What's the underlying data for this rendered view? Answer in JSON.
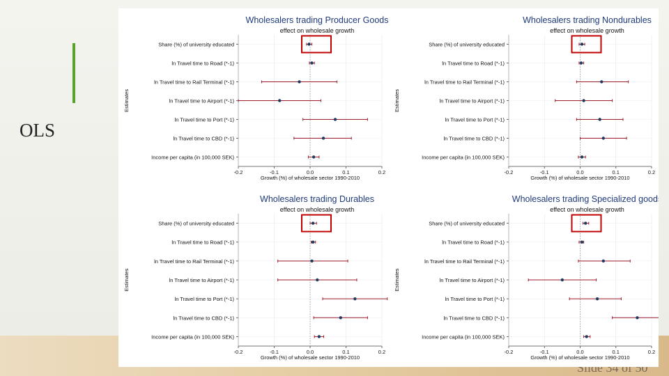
{
  "slide": {
    "label": "OLS",
    "slide_number": "Slide 34 of 50",
    "accent_color": "#5aa02c"
  },
  "colors": {
    "ci_line": "#9b1b2a",
    "point": "#1f3a5f",
    "highlight_box": "#c00000",
    "zero_line": "#999999"
  },
  "chart_data": [
    {
      "type": "scatter",
      "title": "Wholesalers trading Producer Goods",
      "subtitle": "effect on wholesale growth",
      "xlabel": "Growth (%) of wholesale sector 1990-2010",
      "ylabel": "Estimates",
      "xlim": [
        -0.2,
        0.2
      ],
      "xticks": [
        "-0.2",
        "-0.1",
        "0.0",
        "0.1",
        "0.2"
      ],
      "categories": [
        "Share (%) of university educated",
        "ln Travel time to Road (*-1)",
        "ln Travel time to Rail Terminal (*-1)",
        "ln Travel time to Airport (*-1)",
        "ln Travel time to Port (*-1)",
        "ln Travel time to CBD (*-1)",
        "Income per capita (in 100,000 SEK)"
      ],
      "estimates": [
        -0.003,
        0.005,
        -0.03,
        -0.085,
        0.07,
        0.037,
        0.01
      ],
      "ci_low": [
        -0.01,
        -0.002,
        -0.135,
        -0.2,
        -0.02,
        -0.045,
        -0.005
      ],
      "ci_high": [
        0.005,
        0.012,
        0.075,
        0.03,
        0.16,
        0.115,
        0.025
      ],
      "highlight": "Share (%) of university educated"
    },
    {
      "type": "scatter",
      "title": "Wholesalers trading Nondurables",
      "subtitle": "effect on wholesale growth",
      "xlabel": "Growth (%) of wholesale sector 1990-2010",
      "ylabel": "Estimates",
      "xlim": [
        -0.2,
        0.2
      ],
      "xticks": [
        "-0.2",
        "-0.1",
        "0.0",
        "0.1",
        "0.2"
      ],
      "categories": [
        "Share (%) of university educated",
        "ln Travel time to Road (*-1)",
        "ln Travel time to Rail Terminal (*-1)",
        "ln Travel time to Airport (*-1)",
        "ln Travel time to Port (*-1)",
        "ln Travel time to CBD (*-1)",
        "Income per capita (in 100,000 SEK)"
      ],
      "estimates": [
        0.005,
        0.003,
        0.06,
        0.01,
        0.055,
        0.065,
        0.005
      ],
      "ci_low": [
        -0.003,
        -0.003,
        -0.01,
        -0.07,
        -0.01,
        0.0,
        -0.005
      ],
      "ci_high": [
        0.013,
        0.01,
        0.135,
        0.09,
        0.12,
        0.13,
        0.015
      ],
      "highlight": "Share (%) of university educated"
    },
    {
      "type": "scatter",
      "title": "Wholesalers trading Durables",
      "subtitle": "effect on wholesale growth",
      "xlabel": "Growth (%) of wholesale sector 1990-2010",
      "ylabel": "Estimates",
      "xlim": [
        -0.2,
        0.2
      ],
      "xticks": [
        "-0.2",
        "-0.1",
        "0.0",
        "0.1",
        "0.2"
      ],
      "categories": [
        "Share (%) of university educated",
        "ln Travel time to Road (*-1)",
        "ln Travel time to Rail Terminal (*-1)",
        "ln Travel time to Airport (*-1)",
        "ln Travel time to Port (*-1)",
        "ln Travel time to CBD (*-1)",
        "Income per capita (in 100,000 SEK)"
      ],
      "estimates": [
        0.008,
        0.008,
        0.005,
        0.02,
        0.125,
        0.085,
        0.025
      ],
      "ci_low": [
        0.0,
        0.003,
        -0.09,
        -0.09,
        0.035,
        0.01,
        0.012
      ],
      "ci_high": [
        0.018,
        0.015,
        0.105,
        0.13,
        0.215,
        0.16,
        0.038
      ],
      "highlight": "Share (%) of university educated"
    },
    {
      "type": "scatter",
      "title": "Wholesalers trading Specialized goods",
      "subtitle": "effect on wholesale growth",
      "xlabel": "Growth (%) of wholesale sector 1990-2010",
      "ylabel": "Estimates",
      "xlim": [
        -0.2,
        0.2
      ],
      "xticks": [
        "-0.2",
        "-0.1",
        "0.0",
        "0.1",
        "0.2"
      ],
      "categories": [
        "Share (%) of university educated",
        "ln Travel time to Road (*-1)",
        "ln Travel time to Rail Terminal (*-1)",
        "ln Travel time to Airport (*-1)",
        "ln Travel time to Port (*-1)",
        "ln Travel time to CBD (*-1)",
        "Income per capita (in 100,000 SEK)"
      ],
      "estimates": [
        0.015,
        0.005,
        0.065,
        -0.05,
        0.048,
        0.16,
        0.018
      ],
      "ci_low": [
        0.008,
        -0.003,
        -0.005,
        -0.145,
        -0.03,
        0.09,
        0.01
      ],
      "ci_high": [
        0.024,
        0.01,
        0.14,
        0.045,
        0.115,
        0.235,
        0.028
      ],
      "highlight": "Share (%) of university educated"
    }
  ]
}
